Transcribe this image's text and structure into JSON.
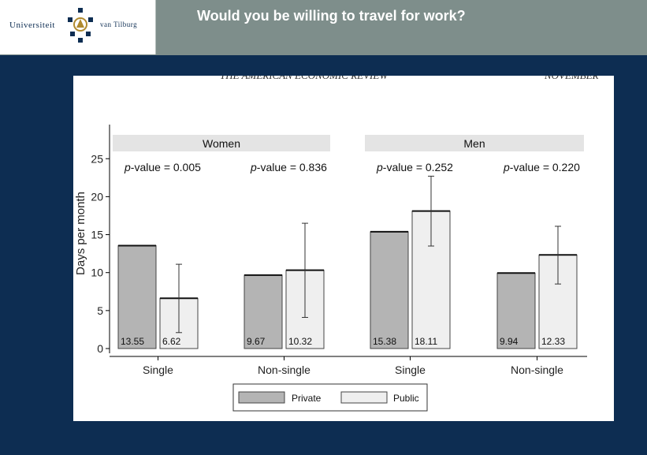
{
  "slide": {
    "title": "Would you be willing to travel for work?",
    "logo": {
      "left_text": "Universiteit",
      "right_text": "van Tilburg"
    }
  },
  "journal_header": {
    "left": "THE AMERICAN ECONOMIC REVIEW",
    "right": "NOVEMBER"
  },
  "colors": {
    "background": "#0d2d52",
    "header": "#7e8e8b",
    "private": "#b4b4b4",
    "public": "#efefef",
    "panel_strip": "#e4e4e4"
  },
  "chart_data": {
    "type": "bar",
    "ylabel": "Days per month",
    "ylim": [
      0,
      28
    ],
    "yticks": [
      0,
      5,
      10,
      15,
      20,
      25
    ],
    "panels": [
      "Women",
      "Men"
    ],
    "legend": {
      "placement": "bottom",
      "entries": [
        "Private",
        "Public"
      ]
    },
    "groups": [
      {
        "panel": "Women",
        "category": "Single",
        "pvalue_prefix": "p",
        "pvalue_text": "-value = 0.005",
        "bars": [
          {
            "series": "Private",
            "value": 13.55,
            "label": "13.55"
          },
          {
            "series": "Public",
            "value": 6.62,
            "label": "6.62",
            "ci": [
              2.1,
              11.1
            ]
          }
        ]
      },
      {
        "panel": "Women",
        "category": "Non-single",
        "pvalue_prefix": "p",
        "pvalue_text": "-value = 0.836",
        "bars": [
          {
            "series": "Private",
            "value": 9.67,
            "label": "9.67"
          },
          {
            "series": "Public",
            "value": 10.32,
            "label": "10.32",
            "ci": [
              4.1,
              16.5
            ]
          }
        ]
      },
      {
        "panel": "Men",
        "category": "Single",
        "pvalue_prefix": "p",
        "pvalue_text": "-value = 0.252",
        "bars": [
          {
            "series": "Private",
            "value": 15.38,
            "label": "15.38"
          },
          {
            "series": "Public",
            "value": 18.11,
            "label": "18.11",
            "ci": [
              13.5,
              22.7
            ]
          }
        ]
      },
      {
        "panel": "Men",
        "category": "Non-single",
        "pvalue_prefix": "p",
        "pvalue_text": "-value = 0.220",
        "bars": [
          {
            "series": "Private",
            "value": 9.94,
            "label": "9.94"
          },
          {
            "series": "Public",
            "value": 12.33,
            "label": "12.33",
            "ci": [
              8.5,
              16.1
            ]
          }
        ]
      }
    ]
  }
}
